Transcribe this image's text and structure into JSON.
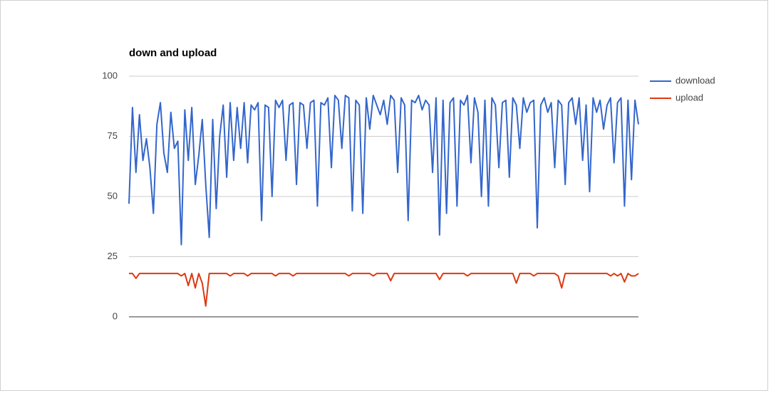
{
  "chart_data": {
    "type": "line",
    "title": "down and upload",
    "ylim": [
      0,
      100
    ],
    "yticks": [
      0,
      25,
      50,
      75,
      100
    ],
    "grid": true,
    "legend": "right",
    "series": [
      {
        "name": "download",
        "color": "#3366cc",
        "values": [
          47,
          87,
          60,
          84,
          65,
          74,
          62,
          43,
          80,
          89,
          68,
          60,
          85,
          70,
          73,
          30,
          86,
          65,
          87,
          55,
          67,
          82,
          55,
          33,
          82,
          45,
          75,
          88,
          58,
          89,
          65,
          87,
          70,
          89,
          64,
          88,
          86,
          89,
          40,
          88,
          87,
          50,
          90,
          87,
          90,
          65,
          88,
          89,
          55,
          89,
          88,
          70,
          89,
          90,
          46,
          89,
          88,
          91,
          62,
          92,
          90,
          70,
          92,
          91,
          44,
          90,
          88,
          43,
          91,
          78,
          92,
          88,
          84,
          90,
          80,
          92,
          90,
          60,
          91,
          88,
          40,
          90,
          89,
          92,
          86,
          90,
          88,
          60,
          91,
          34,
          90,
          43,
          89,
          91,
          46,
          90,
          88,
          92,
          64,
          91,
          85,
          50,
          90,
          46,
          91,
          88,
          62,
          89,
          90,
          58,
          91,
          88,
          70,
          91,
          85,
          89,
          90,
          37,
          88,
          91,
          85,
          89,
          62,
          90,
          88,
          55,
          89,
          91,
          80,
          91,
          65,
          88,
          52,
          91,
          85,
          90,
          78,
          88,
          91,
          64,
          89,
          91,
          46,
          90,
          57,
          90,
          80
        ]
      },
      {
        "name": "upload",
        "color": "#dc3912",
        "values": [
          18,
          18,
          16,
          18,
          18,
          18,
          18,
          18,
          18,
          18,
          18,
          18,
          18,
          18,
          18,
          17,
          18,
          13,
          18,
          12,
          18,
          14,
          4.5,
          18,
          18,
          18,
          18,
          18,
          18,
          17,
          18,
          18,
          18,
          18,
          17,
          18,
          18,
          18,
          18,
          18,
          18,
          18,
          17,
          18,
          18,
          18,
          18,
          17,
          18,
          18,
          18,
          18,
          18,
          18,
          18,
          18,
          18,
          18,
          18,
          18,
          18,
          18,
          18,
          17,
          18,
          18,
          18,
          18,
          18,
          18,
          17,
          18,
          18,
          18,
          18,
          15,
          18,
          18,
          18,
          18,
          18,
          18,
          18,
          18,
          18,
          18,
          18,
          18,
          18,
          15.5,
          18,
          18,
          18,
          18,
          18,
          18,
          18,
          17,
          18,
          18,
          18,
          18,
          18,
          18,
          18,
          18,
          18,
          18,
          18,
          18,
          18,
          14,
          18,
          18,
          18,
          18,
          17,
          18,
          18,
          18,
          18,
          18,
          18,
          17,
          12,
          18,
          18,
          18,
          18,
          18,
          18,
          18,
          18,
          18,
          18,
          18,
          18,
          18,
          17,
          18,
          17,
          18,
          14.5,
          18,
          17,
          17,
          18
        ]
      }
    ]
  }
}
